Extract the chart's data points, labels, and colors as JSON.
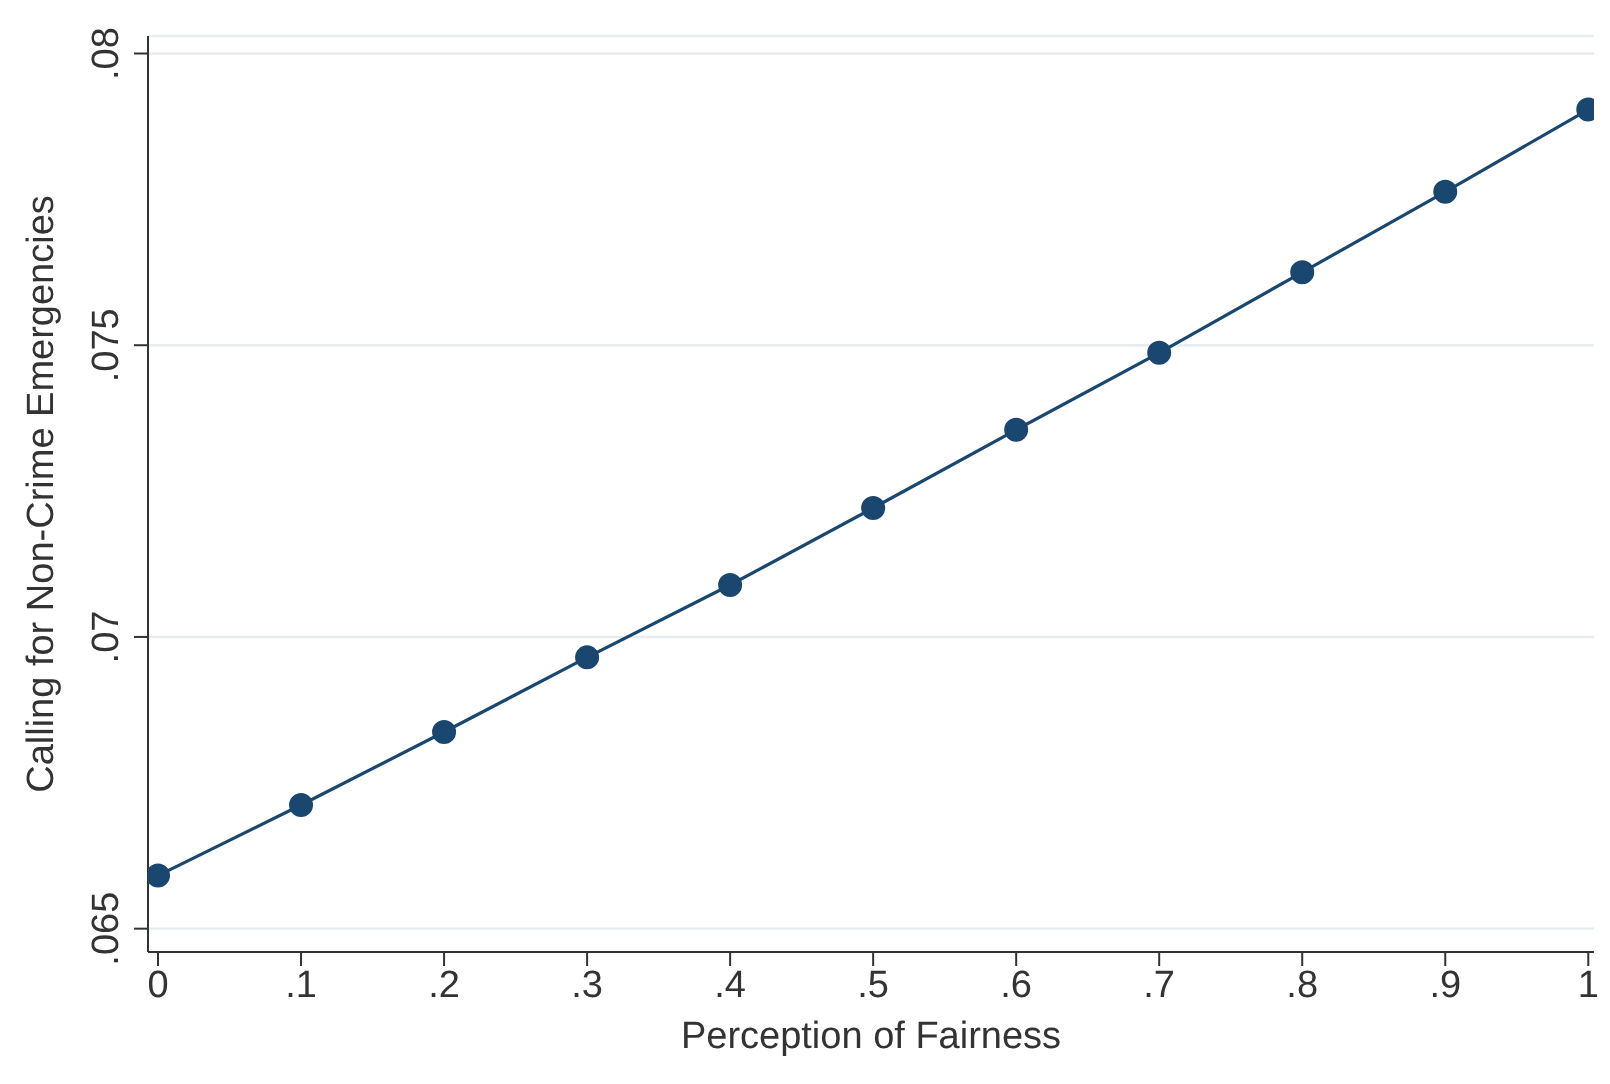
{
  "chart_data": {
    "type": "line",
    "xlabel": "Perception of Fairness",
    "ylabel": "Calling for Non-Crime Emergencies",
    "x": [
      0,
      0.1,
      0.2,
      0.3,
      0.4,
      0.5,
      0.6,
      0.7,
      0.8,
      0.9,
      1
    ],
    "series": [
      {
        "color": "#1a476f",
        "values": [
          0.06591,
          0.06712,
          0.06837,
          0.06965,
          0.07089,
          0.07221,
          0.07355,
          0.07487,
          0.07625,
          0.07763,
          0.07904
        ]
      }
    ],
    "xlim": [
      -0.007,
      1.004
    ],
    "ylim": [
      0.0646,
      0.0803
    ],
    "xticks": [
      0,
      {
        "value": 0.1,
        "label": ".1"
      },
      {
        "value": 0.2,
        "label": ".2"
      },
      {
        "value": 0.3,
        "label": ".3"
      },
      {
        "value": 0.4,
        "label": ".4"
      },
      {
        "value": 0.5,
        "label": ".5"
      },
      {
        "value": 0.6,
        "label": ".6"
      },
      {
        "value": 0.7,
        "label": ".7"
      },
      {
        "value": 0.8,
        "label": ".8"
      },
      {
        "value": 0.9,
        "label": ".9"
      },
      1
    ],
    "yticks": [
      {
        "value": 0.065,
        "label": ".065"
      },
      {
        "value": 0.07,
        "label": ".07"
      },
      {
        "value": 0.075,
        "label": ".075"
      },
      {
        "value": 0.08,
        "label": ".08"
      }
    ],
    "grid": "y",
    "marker": "circle",
    "line_style": "solid",
    "legend": false
  }
}
